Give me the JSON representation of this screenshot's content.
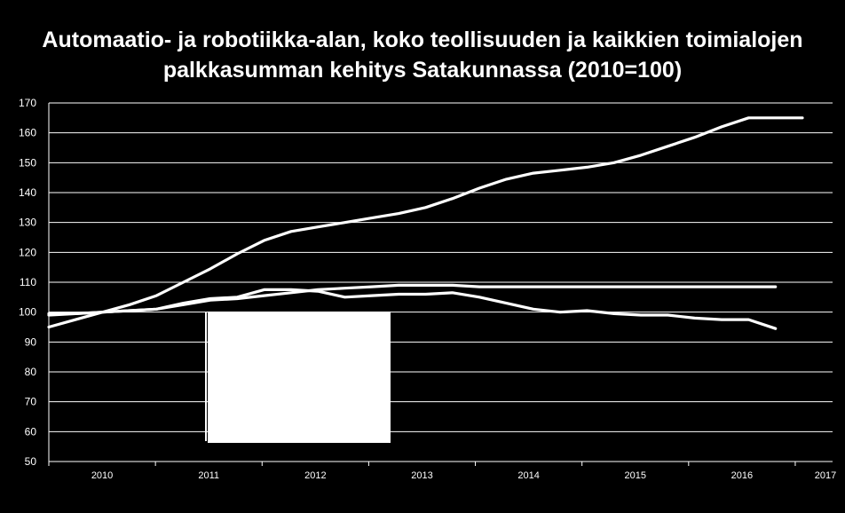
{
  "chart_data": {
    "type": "line",
    "title_line1": "Automaatio- ja robotiikka-alan, koko teollisuuden ja kaikkien toimialojen",
    "title_line2": "palkkasumman kehitys Satakunnassa (2010=100)",
    "ylim": [
      50,
      170
    ],
    "y_ticks": [
      "170",
      "160",
      "150",
      "140",
      "130",
      "120",
      "110",
      "100",
      "90",
      "80",
      "70",
      "60",
      "50"
    ],
    "x_ticks": [
      "2010",
      "2011",
      "2012",
      "2013",
      "2014",
      "2015",
      "2016",
      "2017"
    ],
    "grid": true,
    "legend": "covered by a white box",
    "line_color": "#ffffff",
    "background": "#000000",
    "series": [
      {
        "x": [
          2010,
          2010.25,
          2010.5,
          2010.75,
          2011,
          2011.25,
          2011.5,
          2011.75,
          2012,
          2012.25,
          2012.5,
          2012.75,
          2013,
          2013.25,
          2013.5,
          2013.75,
          2014,
          2014.25,
          2014.5,
          2014.75,
          2015,
          2015.25,
          2015.5,
          2015.75,
          2016,
          2016.25,
          2016.5,
          2016.75,
          2017
        ],
        "values": [
          95,
          97.5,
          100,
          102.5,
          105.5,
          110,
          114.5,
          119.5,
          124,
          127,
          128.5,
          130,
          131.5,
          133,
          135,
          138,
          141.5,
          144.5,
          146.5,
          147.5,
          148.5,
          150,
          152.5,
          155.5,
          158.5,
          162,
          165,
          165,
          165
        ]
      },
      {
        "x": [
          2010,
          2010.25,
          2010.5,
          2010.75,
          2011,
          2011.25,
          2011.5,
          2011.75,
          2012,
          2012.25,
          2012.5,
          2012.75,
          2013,
          2013.25,
          2013.5,
          2013.75,
          2014,
          2014.25,
          2014.5,
          2014.75,
          2015,
          2015.25,
          2015.5,
          2015.75,
          2016,
          2016.25,
          2016.5,
          2016.75
        ],
        "values": [
          99,
          99.5,
          100,
          100.5,
          101,
          102.5,
          104,
          104.5,
          105.5,
          106.5,
          107.5,
          108,
          108.5,
          109,
          109,
          109,
          108.5,
          108.5,
          108.5,
          108.5,
          108.5,
          108.5,
          108.5,
          108.5,
          108.5,
          108.5,
          108.5,
          108.5
        ]
      },
      {
        "x": [
          2010,
          2010.25,
          2010.5,
          2010.75,
          2011,
          2011.25,
          2011.5,
          2011.75,
          2012,
          2012.25,
          2012.5,
          2012.75,
          2013,
          2013.25,
          2013.5,
          2013.75,
          2014,
          2014.25,
          2014.5,
          2014.75,
          2015,
          2015.25,
          2015.5,
          2015.75,
          2016,
          2016.25,
          2016.5,
          2016.75
        ],
        "values": [
          99.5,
          99.5,
          100,
          100.5,
          101,
          103,
          104.5,
          105,
          107.5,
          107.5,
          107,
          105,
          105.5,
          106,
          106,
          106.5,
          105,
          103,
          101,
          100,
          100.5,
          99.5,
          99,
          99,
          98,
          97.5,
          97.5,
          94.5
        ]
      }
    ]
  }
}
